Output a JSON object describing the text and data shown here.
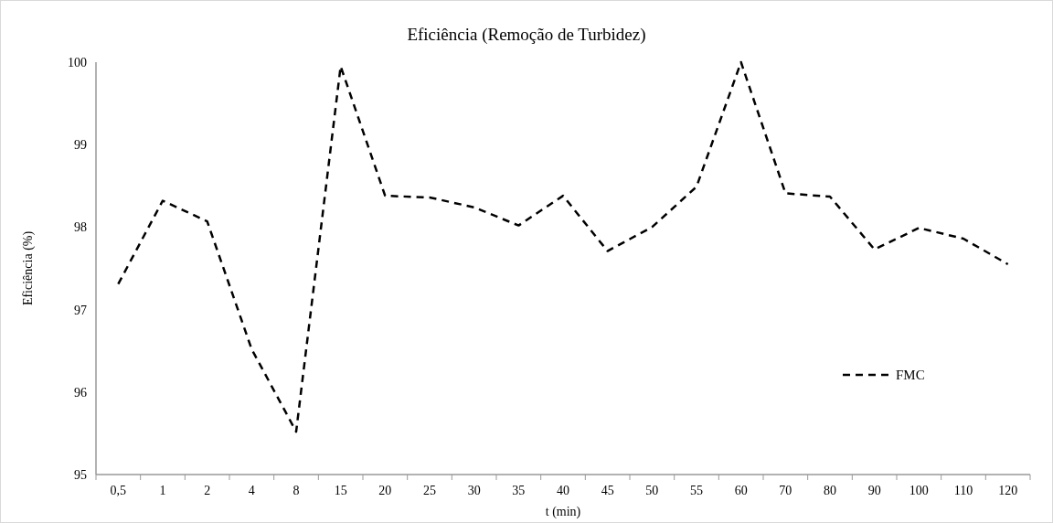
{
  "chart_data": {
    "type": "line",
    "title": "Eficiência (Remoção de Turbidez)",
    "xlabel": "t (min)",
    "ylabel": "Eficiência (%)",
    "categories": [
      "0,5",
      "1",
      "2",
      "4",
      "8",
      "15",
      "20",
      "25",
      "30",
      "35",
      "40",
      "45",
      "50",
      "55",
      "60",
      "70",
      "80",
      "90",
      "100",
      "110",
      "120"
    ],
    "series": [
      {
        "name": "FMC",
        "color": "#000000",
        "values": [
          97.31,
          98.32,
          98.07,
          96.52,
          95.52,
          99.95,
          98.38,
          98.36,
          98.24,
          98.02,
          98.38,
          97.71,
          98.0,
          98.49,
          100.0,
          98.41,
          98.37,
          97.73,
          97.99,
          97.86,
          97.55
        ]
      }
    ],
    "ylim": [
      95,
      100
    ],
    "yticks": [
      95,
      96,
      97,
      98,
      99,
      100
    ],
    "grid": false,
    "legend": "right",
    "line_style": "dashed",
    "marker": "none"
  }
}
